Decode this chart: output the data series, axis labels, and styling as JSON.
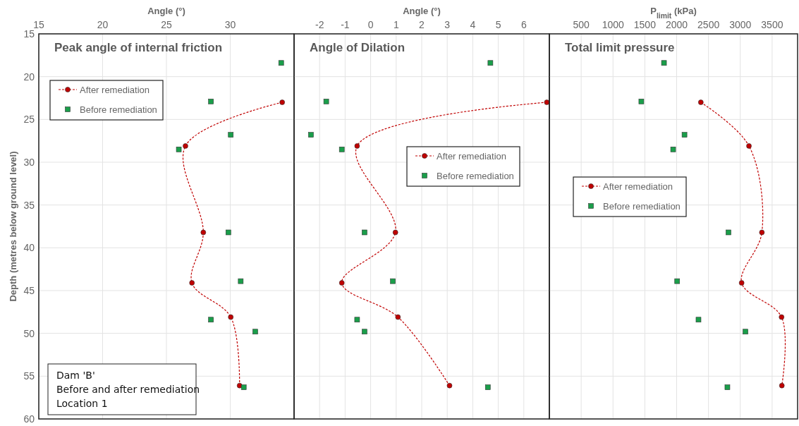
{
  "chart_data": [
    {
      "type": "scatter",
      "title": "Peak angle of internal friction",
      "xlabel": "Angle (°)",
      "ylabel": "Depth (metres below ground level)",
      "xlim": [
        15,
        35
      ],
      "xticks": [
        15,
        20,
        25,
        30
      ],
      "ylim": [
        60,
        15
      ],
      "yticks": [
        15,
        20,
        25,
        30,
        35,
        40,
        45,
        50,
        55,
        60
      ],
      "grid": true,
      "legend": "top left",
      "annotations": [
        "Dam 'B'",
        "Before and after remediation",
        "Location 1"
      ],
      "series": [
        {
          "name": "After remediation",
          "type": "line",
          "color": "#c00000",
          "marker": "circle",
          "line_style": "dashed",
          "x": [
            34.07,
            26.49,
            27.89,
            27.0,
            30.04,
            30.73
          ],
          "values": [
            23.0,
            28.1,
            38.2,
            44.1,
            48.1,
            56.1
          ]
        },
        {
          "name": "Before remediation",
          "color": "#1a9e4a",
          "marker": "square",
          "x": [
            33.99,
            28.49,
            30.04,
            25.97,
            29.85,
            30.82,
            28.49,
            31.96,
            31.06
          ],
          "values": [
            18.4,
            22.9,
            26.8,
            28.5,
            38.2,
            43.9,
            48.4,
            49.8,
            56.3
          ]
        }
      ]
    },
    {
      "type": "scatter",
      "title": "Angle of Dilation",
      "xlabel": "Angle (°)",
      "xlim": [
        -3,
        7
      ],
      "xticks": [
        -2,
        -1,
        0,
        1,
        2,
        3,
        4,
        5,
        6
      ],
      "ylim": [
        60,
        15
      ],
      "yticks": [
        15,
        20,
        25,
        30,
        35,
        40,
        45,
        50,
        55,
        60
      ],
      "grid": true,
      "legend": "right",
      "tick_labels": "x",
      "series": [
        {
          "name": "After remediation",
          "type": "line",
          "color": "#c00000",
          "marker": "circle",
          "line_style": "dashed",
          "x": [
            6.9,
            -0.53,
            0.97,
            -1.13,
            1.07,
            3.09
          ],
          "values": [
            23.0,
            28.1,
            38.2,
            44.1,
            48.1,
            56.1
          ]
        },
        {
          "name": "Before remediation",
          "color": "#1a9e4a",
          "marker": "square",
          "x": [
            4.69,
            -1.74,
            -2.34,
            -1.13,
            -0.24,
            0.87,
            -0.53,
            -0.24,
            4.59
          ],
          "values": [
            18.4,
            22.9,
            26.8,
            28.5,
            38.2,
            43.9,
            48.4,
            49.8,
            56.3
          ]
        }
      ]
    },
    {
      "type": "scatter",
      "title": "Total limit pressure",
      "xlabel": "P$_{limit}$ (kPa)",
      "xlim": [
        0,
        3900
      ],
      "xticks": [
        500,
        1000,
        1500,
        2000,
        2500,
        3000,
        3500
      ],
      "ylim": [
        60,
        15
      ],
      "yticks": [
        15,
        20,
        25,
        30,
        35,
        40,
        45,
        50,
        55,
        60
      ],
      "grid": true,
      "legend": "left",
      "tick_labels": "x",
      "series": [
        {
          "name": "After remediation",
          "type": "line",
          "color": "#c00000",
          "marker": "circle",
          "line_style": "dashed",
          "x": [
            2380,
            3136,
            3339,
            3021,
            3648,
            3653
          ],
          "values": [
            23.0,
            28.1,
            38.2,
            44.1,
            48.1,
            56.1
          ]
        },
        {
          "name": "Before remediation",
          "color": "#1a9e4a",
          "marker": "square",
          "x": [
            1801,
            1445,
            2123,
            1945,
            2814,
            2008,
            2343,
            3081,
            2797
          ],
          "values": [
            18.4,
            22.9,
            26.8,
            28.5,
            38.2,
            43.9,
            48.4,
            49.8,
            56.3
          ]
        }
      ]
    }
  ]
}
